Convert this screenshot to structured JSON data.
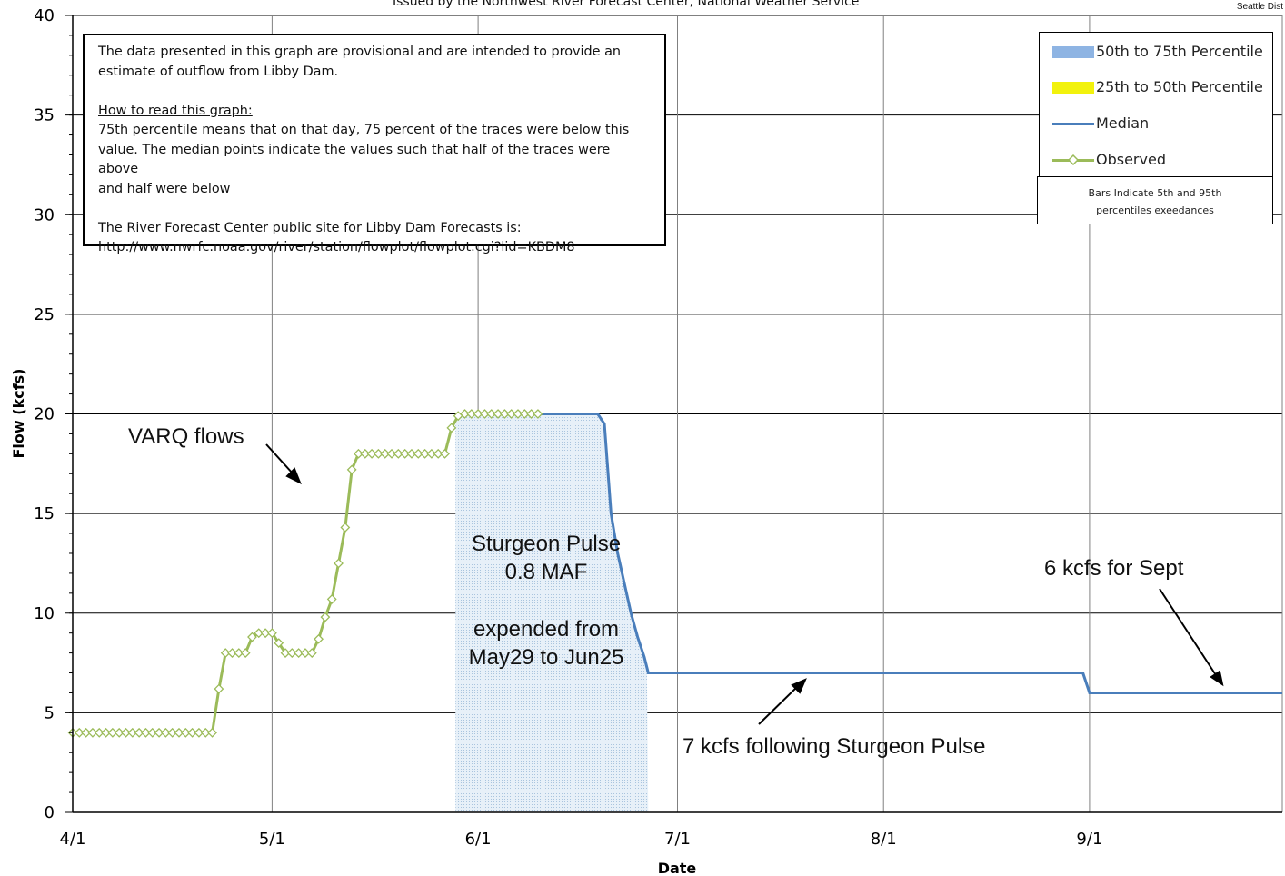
{
  "header": {
    "title_partial": "Issued by the Northwest River Forecast Center, National Weather Service",
    "corner_label": "Seattle Dist"
  },
  "note": {
    "line1": "The data presented in this graph are provisional and are intended to provide an",
    "line2": "estimate of outflow from Libby Dam.",
    "howto_heading": "How to read this graph:",
    "howto_1": "75th percentile means that on that day, 75 percent of the traces were below this",
    "howto_2": "value.  The median points indicate the values such that half of  the traces were above",
    "howto_3": "and half were below",
    "site_1": "The River Forecast Center public site for Libby Dam Forecasts is:",
    "site_2": "http://www.nwrfc.noaa.gov/river/station/flowplot/flowplot.cgi?lid=KBDM8"
  },
  "legend": {
    "items": [
      {
        "label": "50th to 75th Percentile",
        "color": "#8eb4e3"
      },
      {
        "label": "25th to 50th Percentile",
        "color": "#f2f20d"
      },
      {
        "label": "Median",
        "color": "#4a7ebb"
      },
      {
        "label": "Observed",
        "color": "#9bbb59"
      }
    ],
    "bars_note_1": "Bars Indicate 5th and 95th",
    "bars_note_2": "percentiles exeedances"
  },
  "annotations": {
    "varq": "VARQ flows",
    "pulse_1": "Sturgeon Pulse",
    "pulse_2": "0.8 MAF",
    "pulse_3": "expended from",
    "pulse_4": "May29 to Jun25",
    "seven": "7 kcfs following Sturgeon Pulse",
    "six": "6 kcfs for Sept"
  },
  "chart_data": {
    "type": "line",
    "xlabel": "Date",
    "ylabel": "Flow (kcfs)",
    "ylim": [
      0,
      40
    ],
    "yticks": [
      0,
      5,
      10,
      15,
      20,
      25,
      30,
      35,
      40
    ],
    "xticks": [
      "4/1",
      "5/1",
      "6/1",
      "7/1",
      "8/1",
      "9/1"
    ],
    "xlim_days": [
      0,
      182
    ],
    "grid": true,
    "series": [
      {
        "name": "Observed",
        "color": "#9bbb59",
        "x": [
          0,
          1,
          2,
          3,
          4,
          5,
          6,
          7,
          8,
          9,
          10,
          11,
          12,
          13,
          14,
          15,
          16,
          17,
          18,
          19,
          20,
          21,
          22,
          23,
          24,
          25,
          26,
          27,
          28,
          29,
          30,
          31,
          32,
          33,
          34,
          35,
          36,
          37,
          38,
          39,
          40,
          41,
          42,
          43,
          44,
          45,
          46,
          47,
          48,
          49,
          50,
          51,
          52,
          53,
          54,
          55,
          56,
          57,
          58,
          59,
          60,
          61,
          62,
          63,
          64,
          65,
          66,
          67,
          68,
          69,
          70
        ],
        "y": [
          4,
          4,
          4,
          4,
          4,
          4,
          4,
          4,
          4,
          4,
          4,
          4,
          4,
          4,
          4,
          4,
          4,
          4,
          4,
          4,
          4,
          4,
          6.2,
          8,
          8,
          8,
          8,
          8.8,
          9,
          9,
          9,
          8.5,
          8,
          8,
          8,
          8,
          8,
          8.7,
          9.8,
          10.7,
          12.5,
          14.3,
          17.2,
          18,
          18,
          18,
          18,
          18,
          18,
          18,
          18,
          18,
          18,
          18,
          18,
          18,
          18,
          19.3,
          19.9,
          20,
          20,
          20,
          20,
          20,
          20,
          20,
          20,
          20,
          20,
          20,
          20
        ]
      },
      {
        "name": "Median",
        "color": "#4a7ebb",
        "x": [
          69,
          79,
          80,
          81,
          82,
          83,
          84,
          85,
          86,
          86.6,
          87,
          152,
          152.8,
          153,
          182
        ],
        "y": [
          20,
          20,
          19.5,
          15,
          13,
          11.5,
          10,
          8.8,
          7.8,
          7,
          7,
          7,
          6.2,
          6,
          6
        ]
      },
      {
        "name": "50th to 75th Percentile",
        "color": "#8eb4e3",
        "band": {
          "from_day": 57.6,
          "to_day": 86.6,
          "note": "Sturgeon Pulse band (percentile fill)"
        }
      }
    ]
  }
}
